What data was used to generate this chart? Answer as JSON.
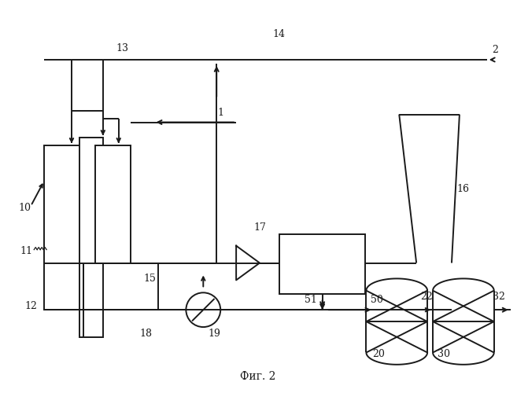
{
  "bg_color": "#ffffff",
  "line_color": "#1a1a1a",
  "fig_caption": "Фиг. 2",
  "label_fs": 9,
  "caption_fs": 10
}
